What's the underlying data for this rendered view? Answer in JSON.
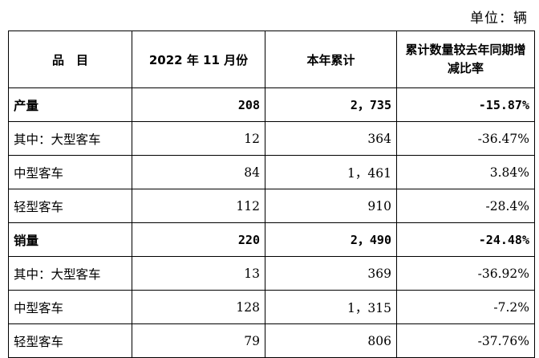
{
  "unit_label": "单位：辆",
  "headers": {
    "item": "品　目",
    "month": "2022 年 11 月份",
    "ytd": "本年累计",
    "change": "累计数量较去年同期增减比率"
  },
  "rows": [
    {
      "label": "产量",
      "month": "208",
      "ytd": "2，735",
      "change": "-15.87%"
    },
    {
      "label": "其中：大型客车",
      "month": "12",
      "ytd": "364",
      "change": "-36.47%"
    },
    {
      "label": "中型客车",
      "month": "84",
      "ytd": "1，461",
      "change": "3.84%"
    },
    {
      "label": "轻型客车",
      "month": "112",
      "ytd": "910",
      "change": "-28.4%"
    },
    {
      "label": "销量",
      "month": "220",
      "ytd": "2，490",
      "change": "-24.48%"
    },
    {
      "label": "其中：大型客车",
      "month": "13",
      "ytd": "369",
      "change": "-36.92%"
    },
    {
      "label": "中型客车",
      "month": "128",
      "ytd": "1，315",
      "change": "-7.2%"
    },
    {
      "label": "轻型客车",
      "month": "79",
      "ytd": "806",
      "change": "-37.76%"
    }
  ]
}
